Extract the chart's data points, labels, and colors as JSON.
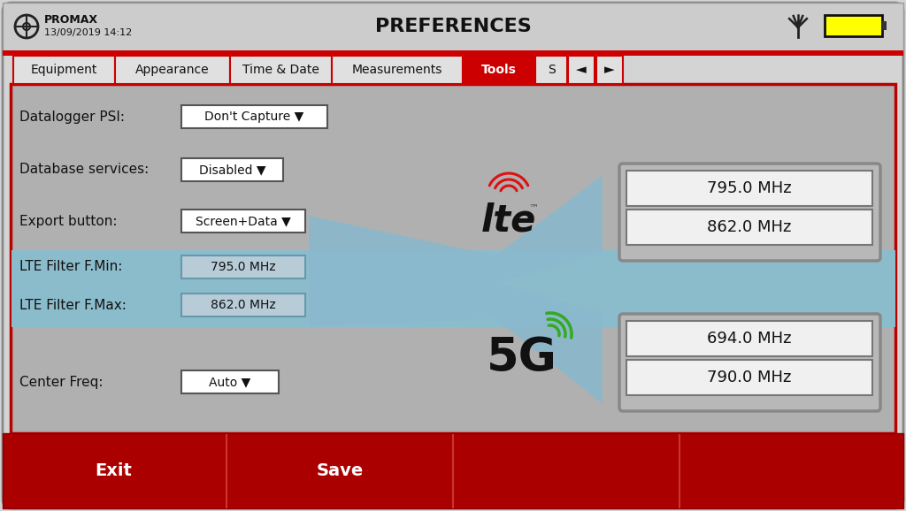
{
  "title": "PREFERENCES",
  "promax_line1": "PROMAX",
  "promax_line2": "13/09/2019 14:12",
  "tabs": [
    "Equipment",
    "Appearance",
    "Time & Date",
    "Measurements",
    "Tools",
    "S"
  ],
  "active_tab": "Tools",
  "lte_values": [
    "795.0 MHz",
    "862.0 MHz"
  ],
  "5g_values": [
    "694.0 MHz",
    "790.0 MHz"
  ],
  "footer_buttons": [
    "Exit",
    "Save"
  ],
  "outer_bg": "#d4d4d4",
  "header_bg": "#cccccc",
  "panel_bg": "#b0b0b0",
  "active_tab_color": "#cc0000",
  "inactive_tab_bg": "#e0e0e0",
  "highlight_row_color": "#8bbccc",
  "footer_color": "#aa0000",
  "border_red": "#bb0000",
  "white": "#ffffff",
  "funnel_color": "#8ab8cc",
  "freq_outer_box": "#b0b0b0",
  "freq_inner_bg": "#f0f0f0",
  "value_box_bg": "#b8ccd8",
  "tab_border": "#cc0000"
}
